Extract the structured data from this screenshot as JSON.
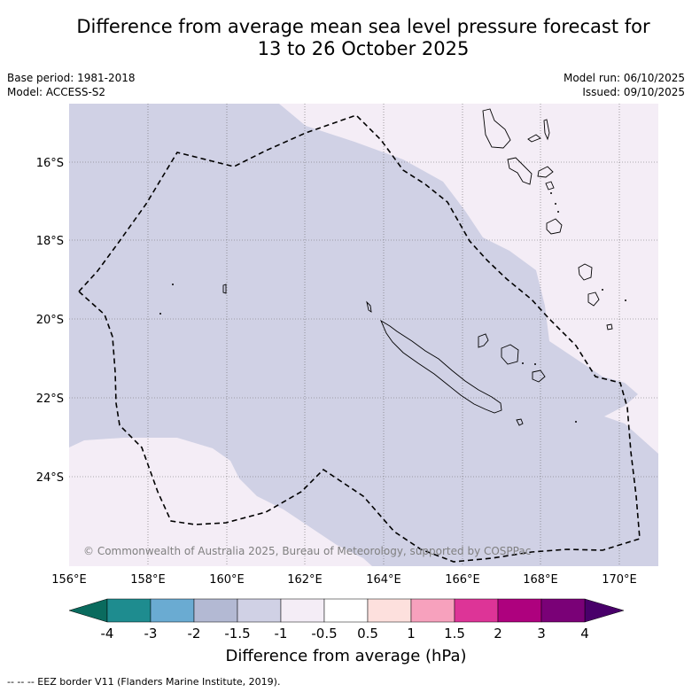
{
  "title_line1": "Difference from average mean sea level pressure forecast for",
  "title_line2": "13 to 26 October 2025",
  "base_period": "Base period: 1981-2018",
  "model": "Model: ACCESS-S2",
  "model_run": "Model run: 06/10/2025",
  "issued": "Issued: 09/10/2025",
  "copyright": "© Commonwealth of Australia 2025, Bureau of Meteorology, supported by COSPPac",
  "lat_labels": [
    "16°S",
    "18°S",
    "20°S",
    "22°S",
    "24°S"
  ],
  "lon_labels": [
    "156°E",
    "158°E",
    "160°E",
    "162°E",
    "164°E",
    "166°E",
    "168°E",
    "170°E"
  ],
  "colorbar": {
    "ticks": [
      "-4",
      "-3",
      "-2",
      "-1.5",
      "-1",
      "-0.5",
      "0.5",
      "1",
      "1.5",
      "2",
      "3",
      "4"
    ],
    "colors": [
      "#1e8c8f",
      "#6aabd2",
      "#b3b9d3",
      "#d0d1e5",
      "#f4edf6",
      "#ffffff",
      "#fde0dd",
      "#f7a1bd",
      "#dd3497",
      "#ae017e",
      "#7a0177"
    ],
    "under_color": "#0a6b5e",
    "over_color": "#49006a",
    "title": "Difference from average (hPa)"
  },
  "map_colors": {
    "band_lavender": "#d0d1e5",
    "band_pale": "#f4edf6"
  },
  "footer": "-- -- -- EEZ border V11 (Flanders Marine Institute, 2019)."
}
